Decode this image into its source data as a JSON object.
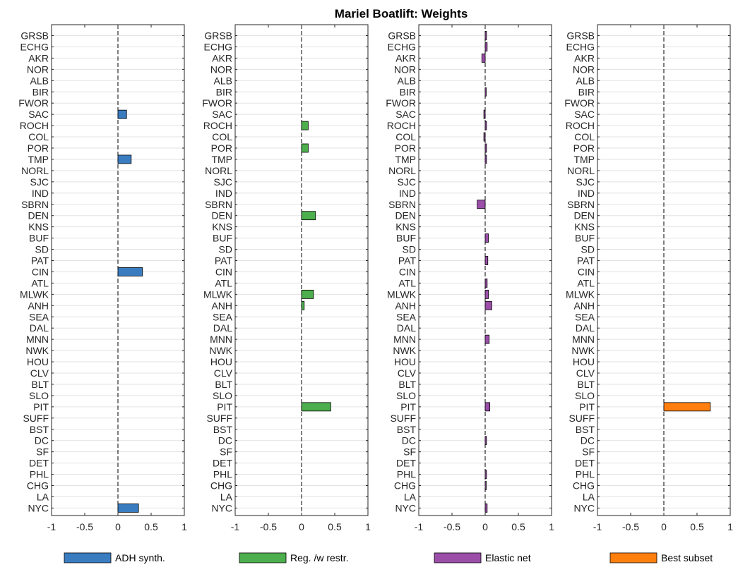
{
  "chart_data": {
    "type": "bar",
    "orientation": "horizontal",
    "title": "Mariel Boatlift: Weights",
    "categories": [
      "GRSB",
      "ECHG",
      "AKR",
      "NOR",
      "ALB",
      "BIR",
      "FWOR",
      "SAC",
      "ROCH",
      "COL",
      "POR",
      "TMP",
      "NORL",
      "SJC",
      "IND",
      "SBRN",
      "DEN",
      "KNS",
      "BUF",
      "SD",
      "PAT",
      "CIN",
      "ATL",
      "MLWK",
      "ANH",
      "SEA",
      "DAL",
      "MNN",
      "NWK",
      "HOU",
      "CLV",
      "BLT",
      "SLO",
      "PIT",
      "SUFF",
      "BST",
      "DC",
      "SF",
      "DET",
      "PHL",
      "CHG",
      "LA",
      "NYC"
    ],
    "xlim": [
      -1,
      1
    ],
    "xticks": [
      "-1",
      "-0.5",
      "0",
      "0.5",
      "1"
    ],
    "grid": "horizontal",
    "legend_position": "bottom",
    "series": [
      {
        "name": "ADH synth.",
        "color": "#3a7cc0",
        "values": [
          0,
          0,
          0,
          0,
          0,
          0,
          0,
          0.13,
          0,
          0,
          0,
          0.2,
          0,
          0,
          0,
          0,
          0,
          0,
          0,
          0,
          0,
          0.37,
          0,
          0,
          0,
          0,
          0,
          0,
          0,
          0,
          0,
          0,
          0,
          0,
          0,
          0,
          0,
          0,
          0,
          0,
          0,
          0,
          0.31
        ]
      },
      {
        "name": "Reg. /w restr.",
        "color": "#4cae4c",
        "values": [
          0,
          0,
          0,
          0,
          0,
          0,
          0,
          0,
          0.1,
          0,
          0.1,
          0,
          0,
          0,
          0,
          0,
          0.21,
          0,
          0,
          0,
          0,
          0,
          0,
          0.18,
          0.04,
          0,
          0,
          0,
          0,
          0,
          0,
          0,
          0,
          0.44,
          0,
          0,
          0,
          0,
          0,
          0,
          0,
          0,
          0
        ]
      },
      {
        "name": "Elastic net",
        "color": "#9a4ea8",
        "values": [
          0.02,
          0.03,
          -0.05,
          0,
          0,
          0.01,
          0,
          -0.02,
          0.02,
          -0.02,
          0.02,
          0.02,
          0,
          0,
          0,
          -0.12,
          0,
          0,
          0.05,
          0,
          0.04,
          0,
          0.03,
          0.05,
          0.1,
          0,
          0,
          0.06,
          0,
          0,
          0,
          0,
          0,
          0.07,
          0,
          0,
          0.02,
          0,
          0,
          0.02,
          0.01,
          0,
          0.03
        ]
      },
      {
        "name": "Best subset",
        "color": "#ff7f0e",
        "values": [
          0,
          0,
          0,
          0,
          0,
          0,
          0,
          0,
          0,
          0,
          0,
          0,
          0,
          0,
          0,
          0,
          0,
          0,
          0,
          0,
          0,
          0,
          0,
          0,
          0,
          0,
          0,
          0,
          0,
          0,
          0,
          0,
          0,
          0.7,
          0,
          0,
          0,
          0,
          0,
          0,
          0,
          0,
          0
        ]
      }
    ]
  }
}
